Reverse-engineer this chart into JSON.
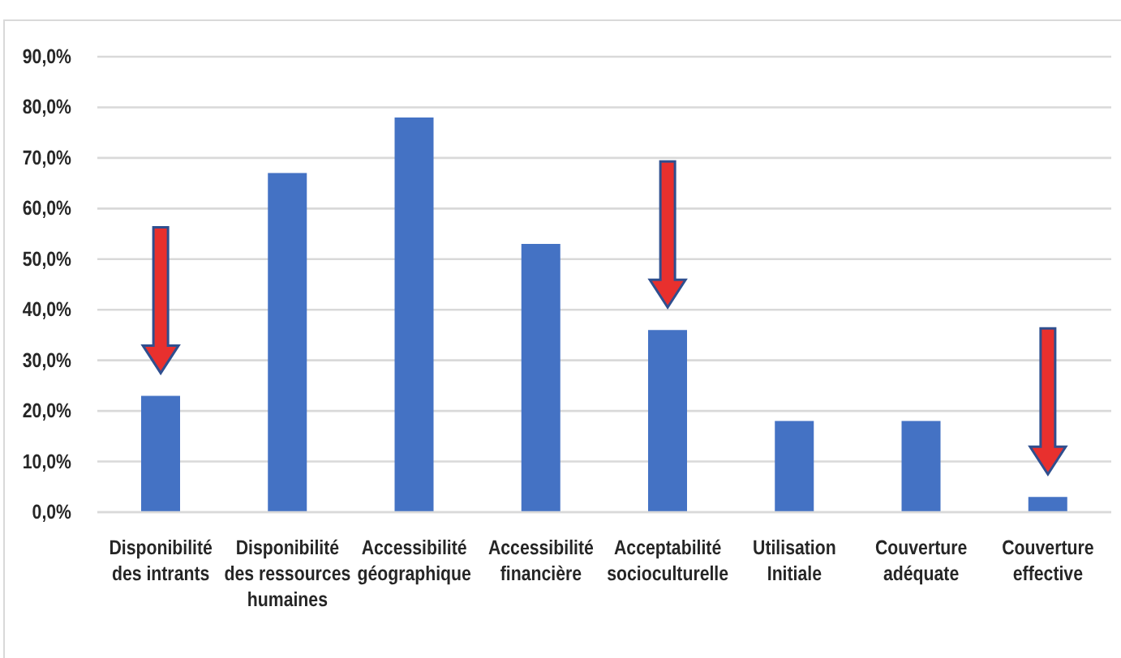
{
  "chart_data": {
    "type": "bar",
    "categories": [
      "Disponibilité des intrants",
      "Disponibilité des ressources humaines",
      "Accessibilité géographique",
      "Accessibilité financière",
      "Acceptabilité socioculturelle",
      "Utilisation Initiale",
      "Couverture adéquate",
      "Couverture effective"
    ],
    "values": [
      23,
      67,
      78,
      53,
      36,
      18,
      18,
      3
    ],
    "color": "#4472c4",
    "ylim": [
      0,
      90
    ],
    "yticks": [
      {
        "value": 0,
        "label": "0,0%"
      },
      {
        "value": 10,
        "label": "10,0%"
      },
      {
        "value": 20,
        "label": "20,0%"
      },
      {
        "value": 30,
        "label": "30,0%"
      },
      {
        "value": 40,
        "label": "40,0%"
      },
      {
        "value": 50,
        "label": "50,0%"
      },
      {
        "value": 60,
        "label": "60,0%"
      },
      {
        "value": 70,
        "label": "70,0%"
      },
      {
        "value": 80,
        "label": "80,0%"
      },
      {
        "value": 90,
        "label": "90,0%"
      }
    ],
    "grid": "y"
  }
}
